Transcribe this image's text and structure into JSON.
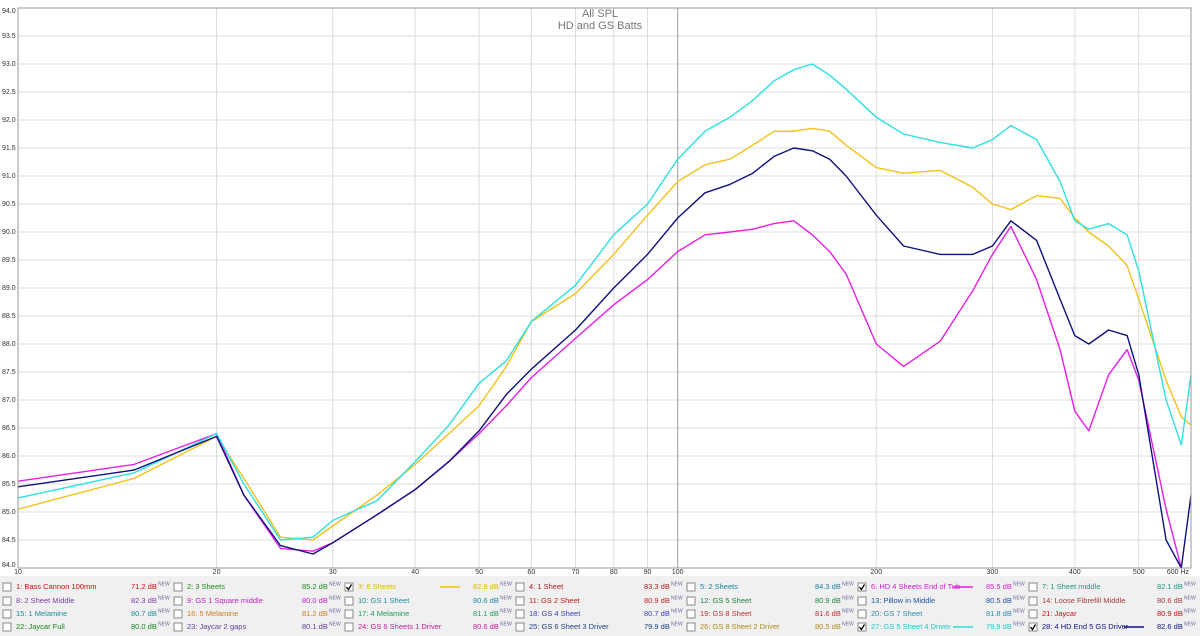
{
  "chart_data": {
    "type": "line",
    "title": "All SPL",
    "subtitle": "HD and GS Batts",
    "log_x": true,
    "grid": true,
    "xlim": [
      10,
      600
    ],
    "ylim": [
      84,
      94
    ],
    "xticks": [
      10,
      20,
      30,
      40,
      50,
      60,
      70,
      80,
      90,
      100,
      200,
      300,
      400,
      500,
      {
        "value": 600,
        "label": "600 Hz"
      }
    ],
    "yticks": [
      {
        "value": 84,
        "label": "84.0"
      },
      84.5,
      {
        "value": 85,
        "label": "85.0"
      },
      85.5,
      {
        "value": 86,
        "label": "86.0"
      },
      86.5,
      {
        "value": 87,
        "label": "87.0"
      },
      87.5,
      {
        "value": 88,
        "label": "88.0"
      },
      88.5,
      {
        "value": 89,
        "label": "89.0"
      },
      89.5,
      {
        "value": 90,
        "label": "90.0"
      },
      90.5,
      {
        "value": 91,
        "label": "91.0"
      },
      91.5,
      {
        "value": 92,
        "label": "92.0"
      },
      92.5,
      {
        "value": 93,
        "label": "93.0"
      },
      93.5,
      {
        "value": 94,
        "label": "94.0"
      }
    ],
    "x": [
      10,
      15,
      20,
      22,
      25,
      28,
      30,
      35,
      40,
      45,
      50,
      55,
      60,
      70,
      80,
      90,
      100,
      110,
      120,
      130,
      140,
      150,
      160,
      170,
      180,
      200,
      220,
      250,
      280,
      300,
      320,
      350,
      380,
      400,
      420,
      450,
      480,
      500,
      550,
      580,
      600
    ],
    "series": [
      {
        "name": "3: 6 Sheets",
        "color": "#f2c21a",
        "values": [
          85.05,
          85.6,
          86.35,
          85.6,
          84.55,
          84.5,
          84.75,
          85.3,
          85.85,
          86.4,
          86.9,
          87.6,
          88.4,
          88.9,
          89.6,
          90.3,
          90.9,
          91.2,
          91.3,
          91.55,
          91.8,
          91.8,
          91.85,
          91.8,
          91.55,
          91.15,
          91.05,
          91.1,
          90.8,
          90.5,
          90.4,
          90.65,
          90.6,
          90.25,
          90.0,
          89.75,
          89.4,
          88.8,
          87.35,
          86.7,
          86.55
        ]
      },
      {
        "name": "6: HD 4 Sheets End of Tub",
        "color": "#e61ee6",
        "values": [
          85.55,
          85.85,
          86.4,
          85.3,
          84.35,
          84.3,
          84.45,
          84.95,
          85.4,
          85.9,
          86.4,
          86.9,
          87.4,
          88.1,
          88.7,
          89.15,
          89.65,
          89.95,
          90.0,
          90.05,
          90.15,
          90.2,
          89.95,
          89.65,
          89.25,
          88.0,
          87.6,
          88.05,
          88.95,
          89.6,
          90.1,
          89.15,
          87.9,
          86.8,
          86.45,
          87.45,
          87.9,
          87.35,
          85.05,
          84.0,
          83.6
        ]
      },
      {
        "name": "27: GS 5 Sheet 4 Driver",
        "color": "#2ee0e0",
        "values": [
          85.25,
          85.7,
          86.4,
          85.5,
          84.5,
          84.55,
          84.85,
          85.2,
          85.9,
          86.55,
          87.3,
          87.7,
          88.4,
          89.05,
          89.95,
          90.5,
          91.3,
          91.8,
          92.05,
          92.35,
          92.7,
          92.9,
          93.0,
          92.8,
          92.55,
          92.05,
          91.75,
          91.6,
          91.5,
          91.65,
          91.9,
          91.65,
          90.9,
          90.2,
          90.05,
          90.15,
          89.95,
          89.3,
          87.0,
          86.2,
          87.45
        ]
      },
      {
        "name": "28: 4 HD End 5 GS Driver",
        "color": "#10107e",
        "values": [
          85.45,
          85.75,
          86.35,
          85.3,
          84.4,
          84.25,
          84.45,
          84.95,
          85.4,
          85.9,
          86.45,
          87.1,
          87.55,
          88.25,
          89.0,
          89.6,
          90.25,
          90.7,
          90.85,
          91.05,
          91.35,
          91.5,
          91.45,
          91.3,
          91.0,
          90.3,
          89.75,
          89.6,
          89.6,
          89.75,
          90.2,
          89.85,
          88.8,
          88.15,
          88.0,
          88.25,
          88.15,
          87.45,
          84.5,
          84.0,
          85.3
        ]
      }
    ]
  },
  "legend": {
    "badge": "NEW",
    "entries": [
      {
        "label": "1: Bass Cannon 100mm",
        "level": "71.2 dB",
        "color": "#c81010",
        "checked": false
      },
      {
        "label": "2: 3 Sheets",
        "level": "85.2 dB",
        "color": "#1e8a1e",
        "checked": false
      },
      {
        "label": "3: 6 Sheets",
        "level": "82.9 dB",
        "color": "#e0b800",
        "checked": true,
        "series": 0
      },
      {
        "label": "4: 1 Sheet",
        "level": "83.3 dB",
        "color": "#a82020",
        "checked": false
      },
      {
        "label": "5: 2 Sheets",
        "level": "84.3 dB",
        "color": "#1e7fa0",
        "checked": false
      },
      {
        "label": "6: HD 4 Sheets End of Tub",
        "level": "85.5 dB",
        "color": "#d01ed0",
        "checked": true,
        "series": 1
      },
      {
        "label": "7: 1 Sheet middle",
        "level": "82.1 dB",
        "color": "#1e9a80",
        "checked": false
      },
      {
        "label": "8: 2 Sheet Middle",
        "level": "82.3 dB",
        "color": "#7a3ea0",
        "checked": false
      },
      {
        "label": "9: GS 1 Square middle",
        "level": "80.0 dB",
        "color": "#c020c0",
        "checked": false
      },
      {
        "label": "10: GS 1 Sheet",
        "level": "80.6 dB",
        "color": "#1e8aa0",
        "checked": false
      },
      {
        "label": "11: GS 2 Sheet",
        "level": "80.9 dB",
        "color": "#c02020",
        "checked": false
      },
      {
        "label": "12: GS 5 Sheet",
        "level": "80.9 dB",
        "color": "#1e8040",
        "checked": false
      },
      {
        "label": "13: Pillow in Middle",
        "level": "80.5 dB",
        "color": "#2050a0",
        "checked": false
      },
      {
        "label": "14: Loose Fibrefill Middle",
        "level": "80.6 dB",
        "color": "#a03c3c",
        "checked": false
      },
      {
        "label": "15: 1 Melamine",
        "level": "80.7 dB",
        "color": "#1e8aa0",
        "checked": false
      },
      {
        "label": "16: 5 Melamine",
        "level": "81.2 dB",
        "color": "#d07a1e",
        "checked": false
      },
      {
        "label": "17: 4 Melamine",
        "level": "81.1 dB",
        "color": "#1e9a60",
        "checked": false
      },
      {
        "label": "18: GS 4 Sheet",
        "level": "80.7 dB",
        "color": "#3c3cc0",
        "checked": false
      },
      {
        "label": "19: GS 8 Sheet",
        "level": "81.6 dB",
        "color": "#c03030",
        "checked": false
      },
      {
        "label": "20: GS 7 Sheet",
        "level": "81.8 dB",
        "color": "#2e8ab0",
        "checked": false
      },
      {
        "label": "21: Jaycar",
        "level": "80.9 dB",
        "color": "#c01010",
        "checked": false
      },
      {
        "label": "22: Jaycar Full",
        "level": "80.0 dB",
        "color": "#1e801e",
        "checked": false
      },
      {
        "label": "23: Jaycar 2 gaps",
        "level": "80.1 dB",
        "color": "#5e3e90",
        "checked": false
      },
      {
        "label": "24: GS 6 Sheets 1 Driver",
        "level": "80.6 dB",
        "color": "#c0209a",
        "checked": false
      },
      {
        "label": "25: GS 6 Sheet 3 Driver",
        "level": "79.9 dB",
        "color": "#203e80",
        "checked": false
      },
      {
        "label": "26: GS 8 Sheet 2 Driver",
        "level": "80.5 dB",
        "color": "#b08a1e",
        "checked": false
      },
      {
        "label": "27: GS 5 Sheet 4 Driver",
        "level": "79.9 dB",
        "color": "#20c8c8",
        "checked": true,
        "series": 2
      },
      {
        "label": "28: 4 HD End 5 GS Driver",
        "level": "82.6 dB",
        "color": "#10107e",
        "checked": true,
        "series": 3
      }
    ]
  }
}
